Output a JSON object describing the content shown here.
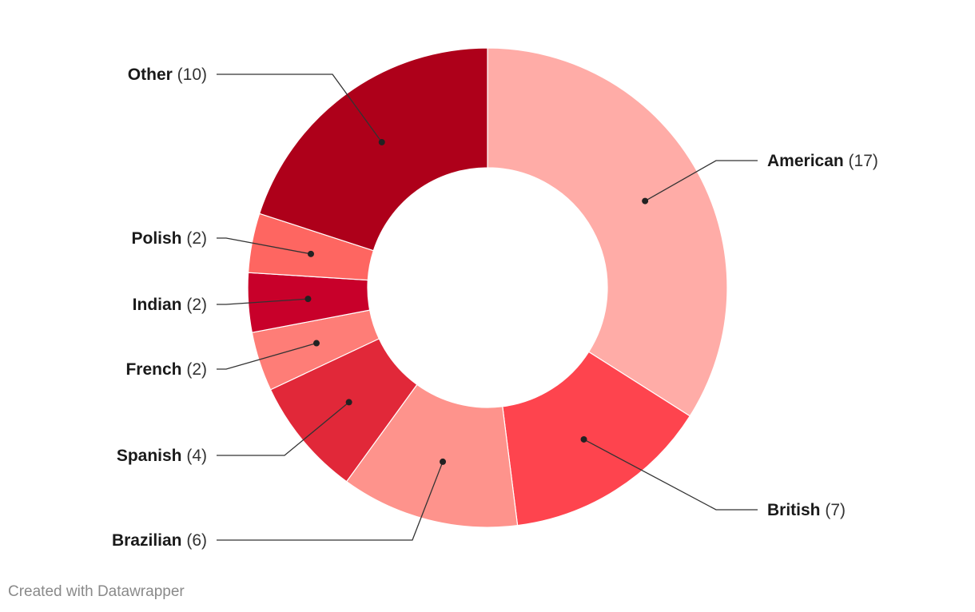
{
  "chart_data": {
    "type": "pie",
    "variant": "donut",
    "title": "",
    "slices": [
      {
        "label": "American",
        "value": 17,
        "color": "#ffaca7"
      },
      {
        "label": "British",
        "value": 7,
        "color": "#fe444e"
      },
      {
        "label": "Brazilian",
        "value": 6,
        "color": "#fe938c"
      },
      {
        "label": "Spanish",
        "value": 4,
        "color": "#e12839"
      },
      {
        "label": "French",
        "value": 2,
        "color": "#fe7d77"
      },
      {
        "label": "Indian",
        "value": 2,
        "color": "#c8002a"
      },
      {
        "label": "Polish",
        "value": 2,
        "color": "#fe6661"
      },
      {
        "label": "Other",
        "value": 10,
        "color": "#ae001a"
      }
    ]
  },
  "footer": {
    "credit": "Created with Datawrapper"
  }
}
